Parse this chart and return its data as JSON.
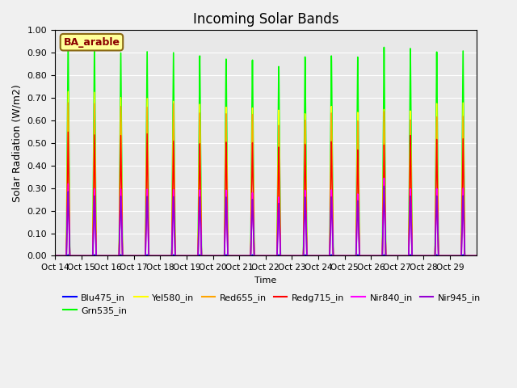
{
  "title": "Incoming Solar Bands",
  "ylabel": "Solar Radiation (W/m2)",
  "xlabel": "Time",
  "annotation": "BA_arable",
  "ylim": [
    0.0,
    1.0
  ],
  "yticks": [
    0.0,
    0.1,
    0.2,
    0.3,
    0.4,
    0.5,
    0.6,
    0.7,
    0.8,
    0.9,
    1.0
  ],
  "x_labels": [
    "Oct 14",
    "Oct 15",
    "Oct 16",
    "Oct 17",
    "Oct 18",
    "Oct 19",
    "Oct 20",
    "Oct 21",
    "Oct 22",
    "Oct 23",
    "Oct 24",
    "Oct 25",
    "Oct 26",
    "Oct 27",
    "Oct 28",
    "Oct 29"
  ],
  "series": {
    "Blu475_in": {
      "color": "#0000FF",
      "lw": 1.0
    },
    "Grn535_in": {
      "color": "#00FF00",
      "lw": 1.2
    },
    "Yel580_in": {
      "color": "#FFFF00",
      "lw": 1.0
    },
    "Red655_in": {
      "color": "#FFA500",
      "lw": 1.0
    },
    "Redg715_in": {
      "color": "#FF0000",
      "lw": 1.0
    },
    "Nir840_in": {
      "color": "#FF00FF",
      "lw": 1.2
    },
    "Nir945_in": {
      "color": "#9400D3",
      "lw": 1.2
    }
  },
  "num_days": 16,
  "background_color": "#E8E8E8",
  "grid_color": "#FFFFFF",
  "legend_box_color": "#FFFF99",
  "legend_box_edge": "#8B6914",
  "peak_grn": [
    0.97,
    0.96,
    0.91,
    0.92,
    0.92,
    0.91,
    0.9,
    0.9,
    0.87,
    0.91,
    0.91,
    0.9,
    0.94,
    0.93,
    0.91,
    0.91
  ],
  "peak_yel": [
    0.73,
    0.73,
    0.71,
    0.71,
    0.7,
    0.69,
    0.68,
    0.68,
    0.67,
    0.65,
    0.68,
    0.65,
    0.66,
    0.65,
    0.68,
    0.68
  ],
  "peak_red": [
    0.68,
    0.68,
    0.67,
    0.67,
    0.69,
    0.65,
    0.65,
    0.65,
    0.6,
    0.62,
    0.65,
    0.61,
    0.65,
    0.61,
    0.62,
    0.62
  ],
  "peak_redg": [
    0.55,
    0.54,
    0.54,
    0.55,
    0.52,
    0.51,
    0.52,
    0.52,
    0.5,
    0.51,
    0.52,
    0.48,
    0.5,
    0.54,
    0.52,
    0.52
  ],
  "peak_nir840": [
    0.32,
    0.3,
    0.3,
    0.3,
    0.3,
    0.3,
    0.3,
    0.29,
    0.27,
    0.3,
    0.3,
    0.28,
    0.35,
    0.3,
    0.3,
    0.3
  ],
  "peak_nir945": [
    0.31,
    0.29,
    0.29,
    0.29,
    0.29,
    0.29,
    0.29,
    0.28,
    0.26,
    0.29,
    0.29,
    0.27,
    0.34,
    0.29,
    0.29,
    0.29
  ],
  "peak_blu": [
    0.005,
    0.005,
    0.005,
    0.005,
    0.005,
    0.005,
    0.005,
    0.005,
    0.005,
    0.005,
    0.005,
    0.005,
    0.005,
    0.005,
    0.005,
    0.005
  ]
}
